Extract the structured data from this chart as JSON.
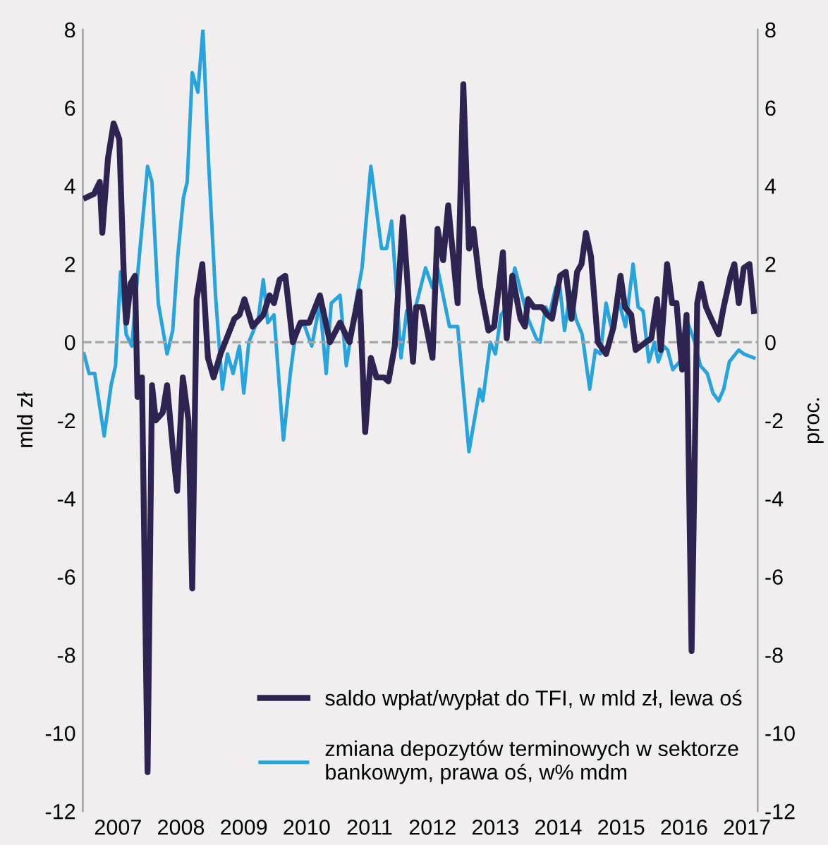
{
  "chart_data": {
    "type": "line",
    "ylabel": "mld zł",
    "y2label": "proc.",
    "ylim": [
      -12,
      8
    ],
    "yticks": [
      -12,
      -10,
      -8,
      -6,
      -4,
      -2,
      0,
      2,
      4,
      6,
      8
    ],
    "y2lim": [
      -12,
      8
    ],
    "y2ticks": [
      -12,
      -10,
      -8,
      -6,
      -4,
      -2,
      0,
      2,
      4,
      6,
      8
    ],
    "xlim": [
      2006.94,
      2017.67
    ],
    "xticks": [
      {
        "value": 2007.5,
        "label": "2007"
      },
      {
        "value": 2008.5,
        "label": "2008"
      },
      {
        "value": 2009.5,
        "label": "2009"
      },
      {
        "value": 2010.5,
        "label": "2010"
      },
      {
        "value": 2011.5,
        "label": "2011"
      },
      {
        "value": 2012.5,
        "label": "2012"
      },
      {
        "value": 2013.5,
        "label": "2013"
      },
      {
        "value": 2014.5,
        "label": "2014"
      },
      {
        "value": 2015.5,
        "label": "2015"
      },
      {
        "value": 2016.5,
        "label": "2016"
      },
      {
        "value": 2017.5,
        "label": "2017"
      }
    ],
    "grid": false,
    "legend": "bottom",
    "line_style": "solid",
    "marker": "none",
    "ref_lines": [
      {
        "axis": "y",
        "value": 0,
        "label": null,
        "color": "#a6a6a6",
        "line_style": "dashed"
      }
    ],
    "series": [
      {
        "name": "saldo wpłat/wypłat do TFI, w mld zł, lewa oś",
        "color": "#2e2452",
        "x": [
          2006.99,
          2007.12,
          2007.21,
          2007.25,
          2007.34,
          2007.43,
          2007.52,
          2007.59,
          2007.63,
          2007.7,
          2007.77,
          2007.81,
          2007.88,
          2007.97,
          2008.04,
          2008.1,
          2008.21,
          2008.28,
          2008.37,
          2008.44,
          2008.53,
          2008.62,
          2008.68,
          2008.75,
          2008.84,
          2008.93,
          2009.02,
          2009.13,
          2009.35,
          2009.43,
          2009.51,
          2009.64,
          2009.81,
          2009.91,
          2009.98,
          2010.07,
          2010.16,
          2010.28,
          2010.4,
          2010.54,
          2010.71,
          2010.87,
          2011.03,
          2011.18,
          2011.34,
          2011.43,
          2011.52,
          2011.61,
          2011.73,
          2011.8,
          2011.9,
          2012.03,
          2012.19,
          2012.24,
          2012.34,
          2012.5,
          2012.58,
          2012.67,
          2012.75,
          2012.9,
          2012.99,
          2013.08,
          2013.15,
          2013.26,
          2013.39,
          2013.48,
          2013.62,
          2013.68,
          2013.77,
          2013.9,
          2013.97,
          2014.02,
          2014.11,
          2014.24,
          2014.33,
          2014.4,
          2014.53,
          2014.62,
          2014.71,
          2014.8,
          2014.87,
          2014.94,
          2015.02,
          2015.13,
          2015.26,
          2015.38,
          2015.49,
          2015.56,
          2015.66,
          2015.73,
          2015.89,
          2015.98,
          2016.07,
          2016.13,
          2016.23,
          2016.31,
          2016.38,
          2016.47,
          2016.54,
          2016.62,
          2016.71,
          2016.77,
          2016.85,
          2016.96,
          2017.05,
          2017.13,
          2017.24,
          2017.3,
          2017.37,
          2017.45,
          2017.54,
          2017.61
        ],
        "values": [
          3.7,
          3.8,
          4.1,
          2.8,
          4.7,
          5.6,
          5.2,
          1.8,
          0.5,
          1.5,
          1.7,
          -1.4,
          -0.9,
          -11.0,
          -1.1,
          -2.0,
          -1.8,
          -1.1,
          -2.7,
          -3.8,
          -0.9,
          -2.0,
          -6.3,
          1.1,
          2.0,
          -0.4,
          -0.9,
          -0.3,
          0.6,
          0.7,
          1.1,
          0.4,
          0.7,
          1.2,
          1.0,
          1.6,
          1.7,
          0.0,
          0.5,
          0.5,
          1.2,
          0.0,
          0.5,
          0.0,
          1.3,
          -2.3,
          -0.4,
          -0.9,
          -0.9,
          -1.0,
          -0.1,
          3.2,
          -0.5,
          0.9,
          0.9,
          -0.4,
          2.9,
          2.1,
          3.5,
          1.0,
          6.6,
          2.4,
          2.9,
          1.4,
          0.3,
          0.4,
          2.3,
          0.1,
          1.7,
          0.6,
          0.4,
          1.1,
          0.9,
          0.9,
          0.7,
          0.6,
          1.7,
          1.8,
          0.6,
          1.8,
          2.0,
          2.8,
          2.2,
          0.0,
          -0.3,
          0.4,
          1.7,
          0.9,
          0.7,
          -0.2,
          0.0,
          0.1,
          1.1,
          -0.2,
          2.0,
          1.0,
          1.0,
          -0.7,
          0.7,
          -7.9,
          1.0,
          1.5,
          0.9,
          0.5,
          0.2,
          0.9,
          1.7,
          2.0,
          1.0,
          1.9,
          2.0,
          0.8
        ]
      },
      {
        "name": "zmiana depozytów terminowych w sektorze bankowym, prawa oś, w% mdm",
        "color": "#27a3dd",
        "axis": "y2",
        "x": [
          2006.96,
          2007.04,
          2007.13,
          2007.28,
          2007.39,
          2007.46,
          2007.54,
          2007.63,
          2007.72,
          2007.81,
          2007.97,
          2008.04,
          2008.14,
          2008.28,
          2008.37,
          2008.45,
          2008.54,
          2008.6,
          2008.68,
          2008.77,
          2008.85,
          2008.94,
          2009.05,
          2009.16,
          2009.24,
          2009.33,
          2009.43,
          2009.5,
          2009.58,
          2009.73,
          2009.81,
          2009.88,
          2009.98,
          2010.13,
          2010.24,
          2010.33,
          2010.45,
          2010.58,
          2010.71,
          2010.81,
          2010.89,
          2011.03,
          2011.13,
          2011.29,
          2011.38,
          2011.52,
          2011.69,
          2011.77,
          2011.85,
          2012.0,
          2012.09,
          2012.2,
          2012.39,
          2012.5,
          2012.58,
          2012.77,
          2012.9,
          2013.08,
          2013.25,
          2013.3,
          2013.42,
          2013.5,
          2013.59,
          2013.68,
          2013.81,
          2014.02,
          2014.15,
          2014.21,
          2014.3,
          2014.36,
          2014.46,
          2014.52,
          2014.6,
          2014.69,
          2014.78,
          2014.88,
          2015.0,
          2015.09,
          2015.17,
          2015.26,
          2015.34,
          2015.47,
          2015.57,
          2015.69,
          2015.77,
          2015.85,
          2015.94,
          2016.03,
          2016.09,
          2016.18,
          2016.24,
          2016.32,
          2016.43,
          2016.56,
          2016.67,
          2016.76,
          2016.87,
          2016.96,
          2017.05,
          2017.13,
          2017.22,
          2017.37,
          2017.45,
          2017.61
        ],
        "values": [
          -0.3,
          -0.8,
          -0.8,
          -2.4,
          -1.1,
          -0.6,
          1.8,
          0.2,
          -0.1,
          1.7,
          4.5,
          4.1,
          1.0,
          -0.3,
          0.3,
          2.2,
          3.7,
          4.1,
          6.9,
          6.4,
          8.0,
          4.6,
          1.2,
          -1.2,
          -0.3,
          -0.8,
          -0.1,
          -1.3,
          0.0,
          0.6,
          1.6,
          0.5,
          0.7,
          -2.5,
          -0.8,
          0.3,
          0.5,
          -0.1,
          1.0,
          -0.8,
          1.0,
          1.2,
          -0.6,
          1.1,
          1.9,
          4.5,
          2.4,
          2.4,
          3.1,
          -0.4,
          0.8,
          0.7,
          1.9,
          1.4,
          1.9,
          0.4,
          0.4,
          -2.8,
          -1.2,
          -1.5,
          0.0,
          -0.3,
          0.7,
          0.9,
          1.9,
          0.6,
          0.1,
          0.0,
          0.9,
          0.7,
          1.4,
          1.5,
          0.3,
          1.3,
          0.6,
          0.2,
          -1.2,
          -0.2,
          -0.3,
          1.0,
          0.4,
          1.0,
          0.4,
          2.0,
          0.9,
          0.8,
          -0.5,
          0.0,
          -0.5,
          -0.1,
          -0.2,
          -0.7,
          -0.5,
          0.5,
          0.0,
          -0.6,
          -0.8,
          -1.3,
          -1.5,
          -1.2,
          -0.5,
          -0.2,
          -0.3,
          -0.4
        ]
      }
    ]
  }
}
